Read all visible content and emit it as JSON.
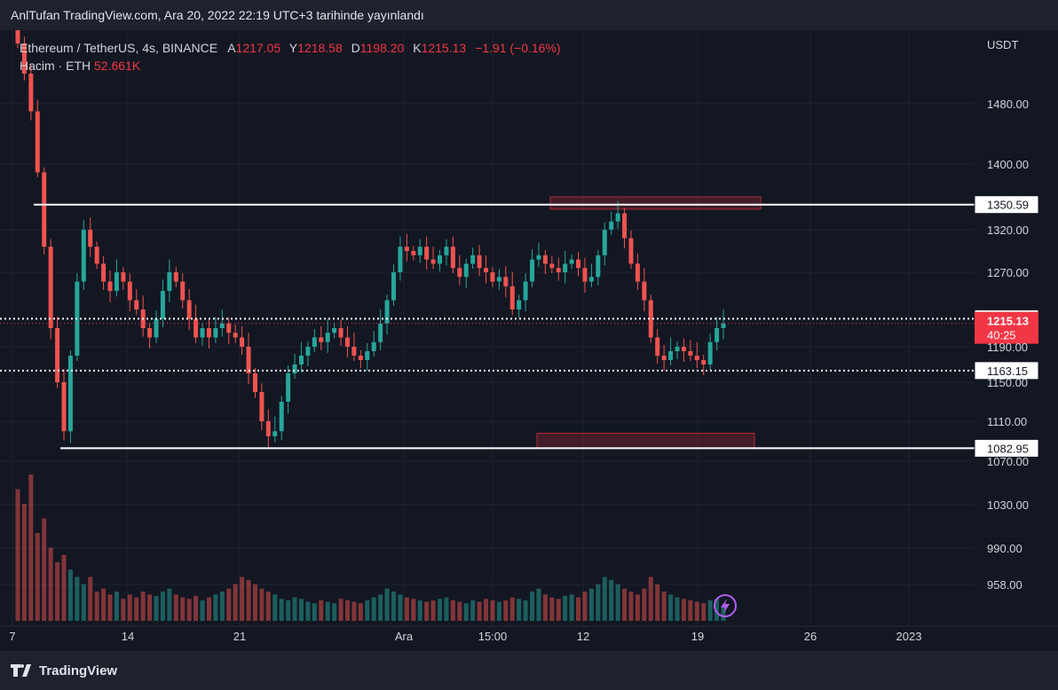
{
  "header": {
    "text": "AnlTufan TradingView.com, Ara 20, 2022 22:19 UTC+3 tarihinde yayınlandı"
  },
  "legend": {
    "symbol": "Ethereum / TetherUS, 4s, BINANCE",
    "open_key": "A",
    "open": "1217.05",
    "high_key": "Y",
    "high": "1218.58",
    "low_key": "D",
    "low": "1198.20",
    "close_key": "K",
    "close": "1215.13",
    "change": "−1.91 (−0.16%)",
    "volume_label": "Hacim · ETH",
    "volume_value": "52.661K"
  },
  "footer": {
    "brand": "TradingView"
  },
  "colors": {
    "up": "#26a69a",
    "down": "#ef5350",
    "background": "#131722",
    "price_badge": "#f23645"
  },
  "chart_data": {
    "type": "candlestick",
    "currency_label": "USDT",
    "y_ticks": [
      "1480.00",
      "1400.00",
      "1320.00",
      "1270.00",
      "1190.00",
      "1150.00",
      "1110.00",
      "1070.00",
      "1030.00",
      "990.00",
      "958.00"
    ],
    "x_ticks": [
      "7",
      "14",
      "21",
      "Ara",
      "15:00",
      "12",
      "19",
      "26",
      "2023"
    ],
    "horizontal_levels": [
      {
        "label": "1350.59",
        "style": "solid"
      },
      {
        "label": "1220.09",
        "style": "dotted"
      },
      {
        "label": "1163.15",
        "style": "dotted"
      },
      {
        "label": "1082.95",
        "style": "solid"
      }
    ],
    "current_price": {
      "label": "1215.13",
      "countdown": "40:25"
    },
    "zones": [
      {
        "name": "resistance-zone",
        "from": 1345,
        "to": 1360
      },
      {
        "name": "support-zone",
        "from": 1083,
        "to": 1098
      }
    ],
    "series_close": [
      1560,
      1520,
      1470,
      1390,
      1300,
      1210,
      1150,
      1100,
      1180,
      1260,
      1320,
      1300,
      1280,
      1260,
      1250,
      1270,
      1260,
      1240,
      1230,
      1210,
      1200,
      1220,
      1250,
      1270,
      1260,
      1240,
      1220,
      1200,
      1210,
      1200,
      1210,
      1215,
      1205,
      1200,
      1190,
      1160,
      1140,
      1110,
      1095,
      1100,
      1130,
      1160,
      1170,
      1180,
      1190,
      1200,
      1195,
      1205,
      1210,
      1200,
      1190,
      1180,
      1175,
      1185,
      1195,
      1215,
      1240,
      1270,
      1300,
      1295,
      1290,
      1300,
      1285,
      1280,
      1290,
      1300,
      1275,
      1265,
      1280,
      1290,
      1275,
      1270,
      1260,
      1265,
      1255,
      1230,
      1240,
      1260,
      1285,
      1290,
      1280,
      1275,
      1270,
      1280,
      1285,
      1275,
      1260,
      1265,
      1290,
      1320,
      1330,
      1340,
      1310,
      1280,
      1260,
      1240,
      1200,
      1180,
      1175,
      1185,
      1190,
      1185,
      1180,
      1175,
      1170,
      1195,
      1210,
      1215
    ],
    "series_volume_relative": [
      0.9,
      0.8,
      1.0,
      0.6,
      0.7,
      0.5,
      0.4,
      0.45,
      0.35,
      0.3,
      0.25,
      0.3,
      0.2,
      0.22,
      0.18,
      0.2,
      0.15,
      0.18,
      0.16,
      0.2,
      0.18,
      0.17,
      0.2,
      0.22,
      0.18,
      0.16,
      0.15,
      0.17,
      0.14,
      0.16,
      0.18,
      0.2,
      0.22,
      0.25,
      0.3,
      0.28,
      0.25,
      0.22,
      0.2,
      0.18,
      0.15,
      0.14,
      0.16,
      0.15,
      0.13,
      0.12,
      0.14,
      0.13,
      0.12,
      0.15,
      0.14,
      0.13,
      0.12,
      0.14,
      0.16,
      0.18,
      0.22,
      0.2,
      0.18,
      0.16,
      0.15,
      0.14,
      0.13,
      0.14,
      0.15,
      0.16,
      0.14,
      0.13,
      0.12,
      0.14,
      0.13,
      0.15,
      0.14,
      0.13,
      0.14,
      0.16,
      0.15,
      0.14,
      0.2,
      0.22,
      0.18,
      0.16,
      0.15,
      0.17,
      0.18,
      0.16,
      0.2,
      0.22,
      0.25,
      0.3,
      0.28,
      0.25,
      0.22,
      0.2,
      0.18,
      0.22,
      0.3,
      0.25,
      0.2,
      0.18,
      0.16,
      0.15,
      0.14,
      0.13,
      0.12,
      0.14,
      0.15,
      0.1
    ]
  }
}
